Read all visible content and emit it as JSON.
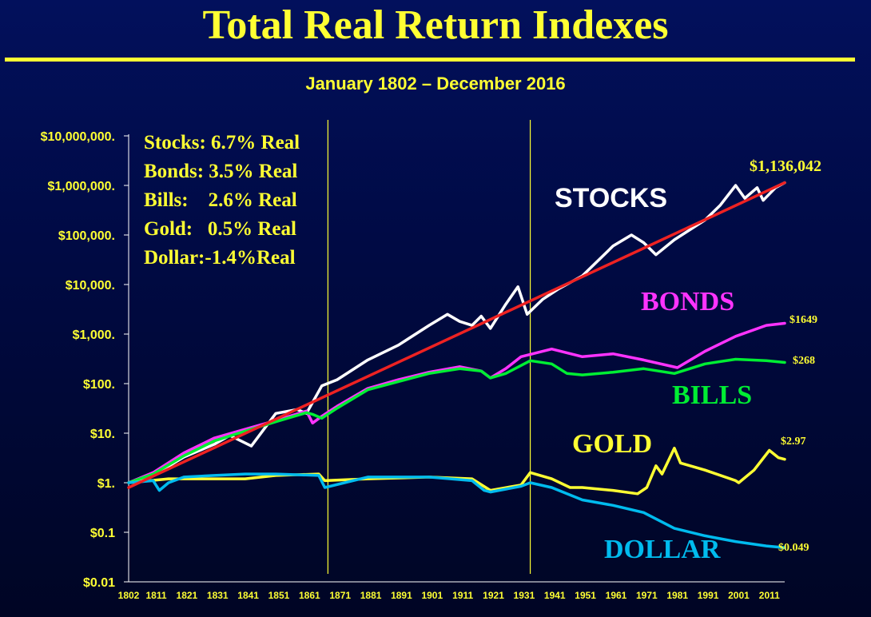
{
  "title": "Total Real Return Indexes",
  "subtitle": "January 1802 – December 2016",
  "rates": [
    "Stocks: 6.7% Real",
    "Bonds: 3.5% Real",
    "Bills:    2.6% Real",
    "Gold:   0.5% Real",
    "Dollar:-1.4%Real"
  ],
  "chart_data": {
    "type": "line",
    "title": "Total Real Return Indexes",
    "subtitle": "January 1802 – December 2016",
    "xlim": [
      1802,
      2016
    ],
    "ylim": [
      0.01,
      10000000
    ],
    "yscale": "log",
    "y_ticks": [
      0.01,
      0.1,
      1,
      10,
      100,
      1000,
      10000,
      100000,
      1000000,
      10000000
    ],
    "y_tick_labels": [
      "$0.01",
      "$0.1",
      "$1.",
      "$10.",
      "$100.",
      "$1,000.",
      "$10,000.",
      "$100,000.",
      "$1,000,000.",
      "$10,000,000."
    ],
    "x_ticks": [
      1802,
      1811,
      1821,
      1831,
      1841,
      1851,
      1861,
      1871,
      1881,
      1891,
      1901,
      1911,
      1921,
      1931,
      1941,
      1951,
      1961,
      1971,
      1981,
      1991,
      2001,
      2011
    ],
    "reference_lines_x": [
      1867,
      1933
    ],
    "grid": false,
    "series": [
      {
        "name": "STOCKS",
        "color": "#ffffff",
        "label_color": "#ffffff",
        "end_label": "$1,136,042",
        "x": [
          1802,
          1810,
          1820,
          1830,
          1835,
          1842,
          1850,
          1857,
          1860,
          1865,
          1870,
          1880,
          1890,
          1900,
          1906,
          1910,
          1914,
          1917,
          1920,
          1925,
          1929,
          1932,
          1937,
          1942,
          1950,
          1960,
          1966,
          1970,
          1974,
          1980,
          1990,
          1995,
          2000,
          2003,
          2007,
          2009,
          2013,
          2016
        ],
        "y": [
          1,
          1.4,
          3.3,
          6,
          9,
          5.5,
          25,
          30,
          25,
          90,
          120,
          300,
          600,
          1500,
          2500,
          1800,
          1500,
          2300,
          1300,
          4000,
          9000,
          2500,
          5000,
          8000,
          15000,
          60000,
          100000,
          70000,
          40000,
          80000,
          200000,
          400000,
          1000000,
          550000,
          900000,
          500000,
          900000,
          1136042
        ]
      },
      {
        "name": "BONDS",
        "color": "#ff33ff",
        "label_color": "#ff33ff",
        "end_label": "$1649",
        "x": [
          1802,
          1810,
          1820,
          1830,
          1840,
          1850,
          1860,
          1862,
          1865,
          1870,
          1880,
          1890,
          1900,
          1910,
          1917,
          1920,
          1925,
          1930,
          1940,
          1950,
          1960,
          1970,
          1981,
          1990,
          2000,
          2010,
          2016
        ],
        "y": [
          1,
          1.6,
          4,
          8,
          12,
          18,
          28,
          16,
          22,
          35,
          80,
          120,
          170,
          220,
          180,
          130,
          200,
          350,
          500,
          350,
          400,
          300,
          210,
          450,
          900,
          1500,
          1649
        ]
      },
      {
        "name": "BILLS",
        "color": "#00ee33",
        "label_color": "#00ee33",
        "end_label": "$268",
        "x": [
          1802,
          1810,
          1820,
          1830,
          1840,
          1850,
          1860,
          1862,
          1865,
          1870,
          1880,
          1890,
          1900,
          1910,
          1917,
          1920,
          1925,
          1933,
          1940,
          1945,
          1950,
          1960,
          1970,
          1980,
          1990,
          2000,
          2010,
          2016
        ],
        "y": [
          1,
          1.5,
          3.5,
          7,
          11,
          17,
          26,
          24,
          20,
          32,
          75,
          110,
          160,
          200,
          180,
          130,
          160,
          290,
          250,
          160,
          150,
          170,
          200,
          160,
          250,
          310,
          290,
          268
        ]
      },
      {
        "name": "GOLD",
        "color": "#ffff33",
        "label_color": "#ffff33",
        "end_label": "$2.97",
        "x": [
          1802,
          1815,
          1830,
          1840,
          1850,
          1864,
          1866,
          1880,
          1900,
          1914,
          1920,
          1930,
          1933,
          1940,
          1946,
          1950,
          1960,
          1968,
          1971,
          1974,
          1976,
          1980,
          1982,
          1990,
          2000,
          2001,
          2006,
          2011,
          2014,
          2016
        ],
        "y": [
          1,
          1.2,
          1.2,
          1.2,
          1.4,
          1.5,
          1.1,
          1.2,
          1.3,
          1.2,
          0.7,
          0.9,
          1.6,
          1.2,
          0.8,
          0.8,
          0.7,
          0.6,
          0.8,
          2.2,
          1.5,
          5,
          2.5,
          1.8,
          1.1,
          1.0,
          1.8,
          4.5,
          3.2,
          2.97
        ]
      },
      {
        "name": "DOLLAR",
        "color": "#00bbee",
        "label_color": "#00bbee",
        "end_label": "$0.049",
        "x": [
          1802,
          1810,
          1812,
          1815,
          1820,
          1830,
          1840,
          1850,
          1864,
          1866,
          1880,
          1900,
          1914,
          1918,
          1920,
          1930,
          1933,
          1940,
          1950,
          1960,
          1970,
          1980,
          1990,
          2000,
          2010,
          2016
        ],
        "y": [
          1,
          1.1,
          0.7,
          1.0,
          1.3,
          1.4,
          1.5,
          1.5,
          1.4,
          0.8,
          1.3,
          1.3,
          1.1,
          0.7,
          0.65,
          0.85,
          1.0,
          0.8,
          0.45,
          0.35,
          0.25,
          0.12,
          0.085,
          0.065,
          0.053,
          0.049
        ]
      },
      {
        "name": "Trend",
        "color": "#ee2222",
        "x": [
          1802,
          2016
        ],
        "y": [
          0.8,
          1136042
        ]
      }
    ]
  }
}
